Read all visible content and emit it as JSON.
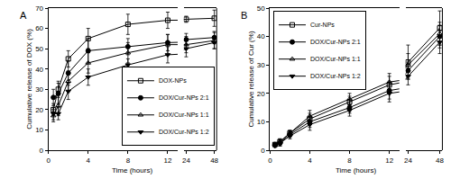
{
  "chart_data": [
    {
      "type": "line",
      "title": "A",
      "xlabel": "Time (hours)",
      "ylabel": "Cumulative release of DOX (%)",
      "x": [
        0.5,
        1,
        2,
        4,
        8,
        12,
        24,
        48
      ],
      "xlim": [
        [
          0,
          13
        ],
        [
          22,
          50
        ]
      ],
      "xticks": [
        0,
        4,
        8,
        12,
        24,
        48
      ],
      "ylim": [
        0,
        70
      ],
      "yticks": [
        0,
        10,
        20,
        30,
        40,
        50,
        60,
        70
      ],
      "legend": "lower right",
      "series": [
        {
          "name": "DOX-NPs",
          "color": "#000000",
          "marker": "square-open",
          "values": [
            20,
            30,
            45,
            55,
            62,
            64,
            64.5,
            65
          ],
          "error": [
            3,
            4,
            4,
            5,
            5,
            4,
            1.5,
            4
          ]
        },
        {
          "name": "DOX/Cur-NPs 2:1",
          "color": "#000000",
          "marker": "circle",
          "values": [
            26,
            28,
            38,
            49,
            51,
            53,
            54.5,
            55.5
          ],
          "error": [
            4,
            5,
            6,
            6,
            4,
            4,
            3,
            3
          ]
        },
        {
          "name": "DOX/Cur-NPs 1:1",
          "color": "#000000",
          "marker": "triangle-up-open",
          "values": [
            17,
            22,
            34,
            43,
            48,
            52,
            52,
            54
          ],
          "error": [
            3,
            5,
            5,
            5,
            5,
            5,
            4,
            4
          ]
        },
        {
          "name": "DOX/Cur-NPs 1:2",
          "color": "#000000",
          "marker": "triangle-down",
          "values": [
            18,
            18,
            29,
            36,
            42,
            47,
            50,
            53
          ],
          "error": [
            3,
            3,
            4,
            4,
            3,
            4,
            4,
            3
          ]
        }
      ]
    },
    {
      "type": "line",
      "title": "B",
      "xlabel": "Time (hours)",
      "ylabel": "Cumulative release of Cur (%)",
      "x": [
        0.5,
        1,
        2,
        4,
        8,
        12,
        24,
        48
      ],
      "xlim": [
        [
          0,
          13
        ],
        [
          22,
          50
        ]
      ],
      "xticks": [
        0,
        4,
        8,
        12,
        24,
        48
      ],
      "ylim": [
        0,
        50
      ],
      "yticks": [
        0,
        10,
        20,
        30,
        40,
        50
      ],
      "legend": "upper left",
      "series": [
        {
          "name": "Cur-NPs",
          "color": "#000000",
          "marker": "square-open",
          "values": [
            2,
            3,
            6,
            11,
            17,
            23,
            31,
            43
          ],
          "error": [
            0.5,
            1,
            1,
            2,
            2,
            3,
            6,
            6
          ]
        },
        {
          "name": "DOX/Cur-NPs 2:1",
          "color": "#000000",
          "marker": "circle",
          "values": [
            2,
            2.5,
            5.5,
            10,
            15,
            21,
            28,
            40
          ],
          "error": [
            0.5,
            1,
            1,
            2,
            2,
            3,
            3,
            4
          ]
        },
        {
          "name": "DOX/Cur-NPs 1:1",
          "color": "#000000",
          "marker": "triangle-up-open",
          "values": [
            2,
            3,
            6,
            12,
            18,
            24,
            30,
            41
          ],
          "error": [
            0.5,
            1,
            1,
            2,
            2,
            3,
            4,
            4
          ]
        },
        {
          "name": "DOX/Cur-NPs 1:2",
          "color": "#000000",
          "marker": "triangle-down",
          "values": [
            1.5,
            2.5,
            5,
            9,
            14,
            20,
            26,
            38
          ],
          "error": [
            0.5,
            1,
            1,
            2,
            2,
            3,
            3,
            4
          ]
        }
      ]
    }
  ]
}
